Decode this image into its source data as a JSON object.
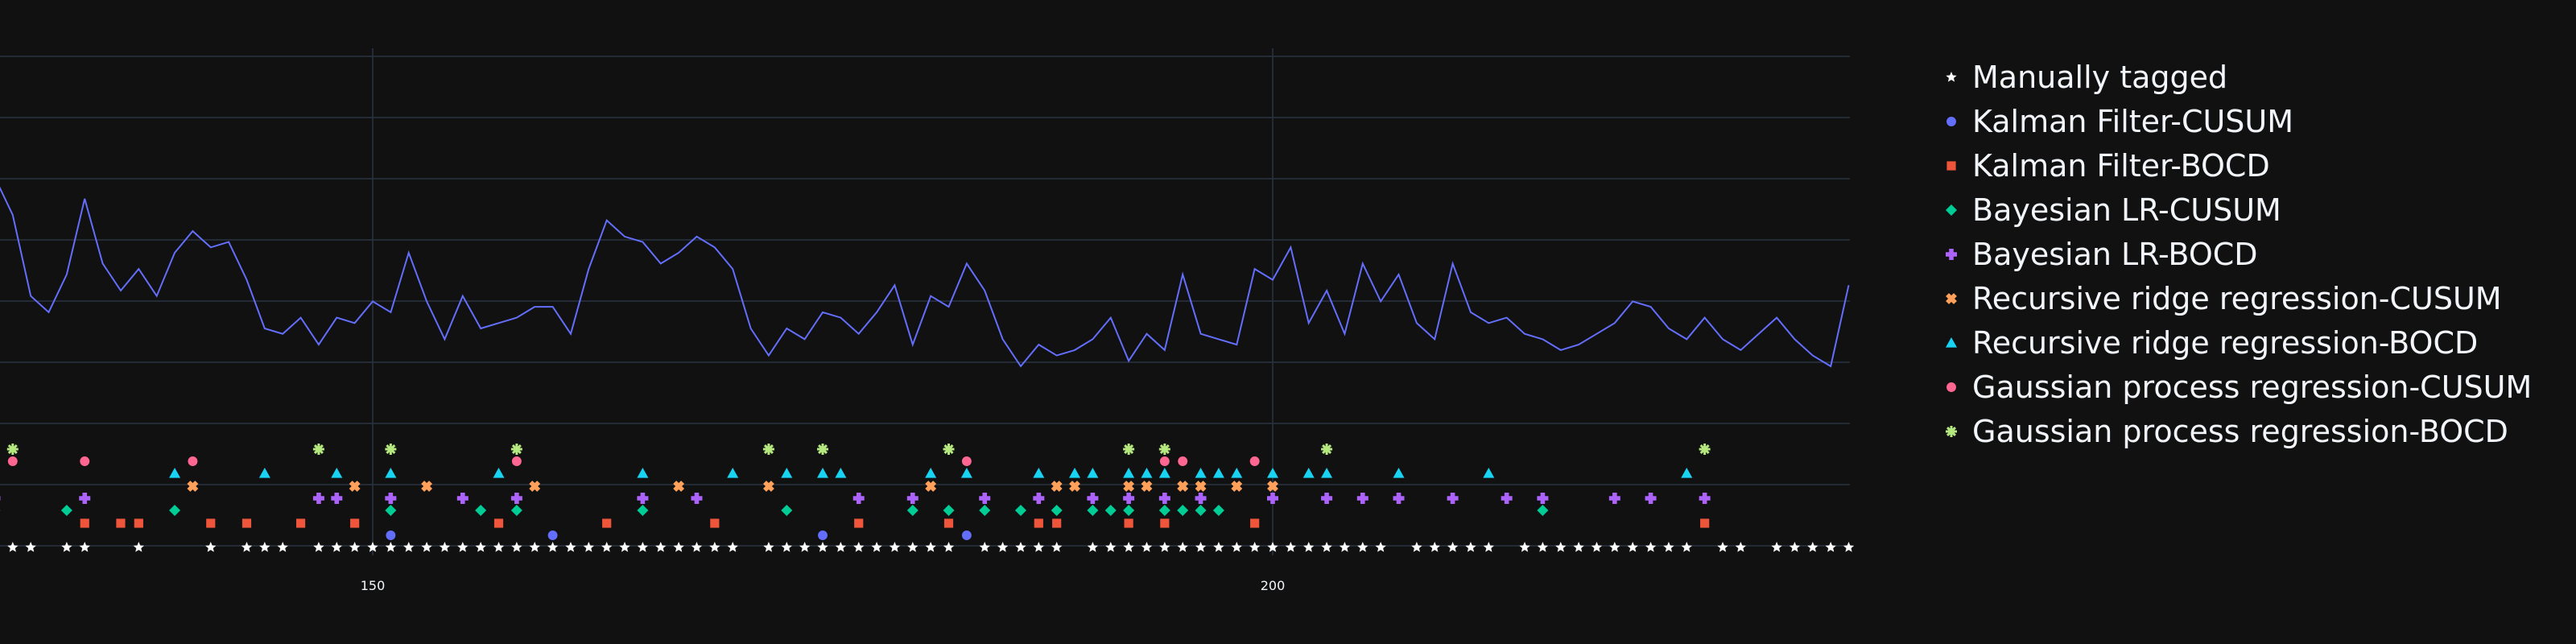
{
  "chart_data": {
    "type": "scatter",
    "title": "",
    "xlabel": "",
    "ylabel": "",
    "xlim": [
      129.4,
      231.5
    ],
    "x_ticks": [
      150,
      200
    ],
    "grid": true,
    "legend_position": "right",
    "background": "#111111",
    "gridcolor": "#283442",
    "line": {
      "color": "#636efa",
      "x": [
        129,
        130,
        131,
        132,
        133,
        134,
        135,
        136,
        137,
        138,
        139,
        140,
        141,
        142,
        143,
        144,
        145,
        146,
        147,
        148,
        149,
        150,
        151,
        152,
        153,
        154,
        155,
        156,
        157,
        158,
        159,
        160,
        161,
        162,
        163,
        164,
        165,
        166,
        167,
        168,
        169,
        170,
        171,
        172,
        173,
        174,
        175,
        176,
        177,
        178,
        179,
        180,
        181,
        182,
        183,
        184,
        185,
        186,
        187,
        188,
        189,
        190,
        191,
        192,
        193,
        194,
        195,
        196,
        197,
        198,
        199,
        200,
        201,
        202,
        203,
        204,
        205,
        206,
        207,
        208,
        209,
        210,
        211,
        212,
        213,
        214,
        215,
        216,
        217,
        218,
        219,
        220,
        221,
        222,
        223,
        224,
        225,
        226,
        227,
        228,
        229,
        230,
        231,
        232
      ],
      "y": [
        6.2,
        5.5,
        4.0,
        3.7,
        4.4,
        5.8,
        4.6,
        4.1,
        4.5,
        4.0,
        4.8,
        5.2,
        4.9,
        5.0,
        4.3,
        3.4,
        3.3,
        3.6,
        3.1,
        3.6,
        3.5,
        3.9,
        3.7,
        4.8,
        3.9,
        3.2,
        4.0,
        3.4,
        3.5,
        3.6,
        3.8,
        3.8,
        3.3,
        4.5,
        5.4,
        5.1,
        5.0,
        4.6,
        4.8,
        5.1,
        4.9,
        4.5,
        3.4,
        2.9,
        3.4,
        3.2,
        3.7,
        3.6,
        3.3,
        3.7,
        4.2,
        3.1,
        4.0,
        3.8,
        4.6,
        4.1,
        3.2,
        2.7,
        3.1,
        2.9,
        3.0,
        3.2,
        3.6,
        2.8,
        3.3,
        3.0,
        4.4,
        3.3,
        3.2,
        3.1,
        4.5,
        4.3,
        4.9,
        3.5,
        4.1,
        3.3,
        4.6,
        3.9,
        4.4,
        3.5,
        3.2,
        4.6,
        3.7,
        3.5,
        3.6,
        3.3,
        3.2,
        3.0,
        3.1,
        3.3,
        3.5,
        3.9,
        3.8,
        3.4,
        3.2,
        3.6,
        3.2,
        3.0,
        3.3,
        3.6,
        3.2,
        2.9,
        2.7,
        4.2
      ],
      "y_to_pixel": {
        "note": "drawn curve scaled to fill band"
      }
    },
    "series": [
      {
        "name": "Manually tagged",
        "symbol": "star",
        "color": "#ffffff",
        "x": [
          129,
          130,
          131,
          133,
          134,
          137,
          141,
          143,
          144,
          145,
          147,
          148,
          149,
          150,
          151,
          152,
          153,
          154,
          155,
          156,
          157,
          158,
          159,
          160,
          161,
          162,
          163,
          164,
          165,
          166,
          167,
          168,
          169,
          170,
          172,
          173,
          174,
          175,
          176,
          177,
          178,
          179,
          180,
          181,
          182,
          184,
          185,
          186,
          187,
          188,
          190,
          191,
          192,
          193,
          194,
          195,
          196,
          197,
          198,
          199,
          200,
          201,
          202,
          203,
          204,
          205,
          206,
          208,
          209,
          210,
          211,
          212,
          214,
          215,
          216,
          217,
          218,
          219,
          220,
          221,
          222,
          223,
          225,
          226,
          228,
          229,
          230,
          231,
          232
        ]
      },
      {
        "name": "Kalman Filter-CUSUM",
        "symbol": "circle",
        "color": "#636efa",
        "x": [
          151,
          160,
          175,
          183
        ]
      },
      {
        "name": "Kalman Filter-BOCD",
        "symbol": "square",
        "color": "#ef553b",
        "x": [
          134,
          136,
          137,
          141,
          143,
          146,
          149,
          157,
          163,
          169,
          177,
          182,
          187,
          188,
          192,
          194,
          199,
          224
        ]
      },
      {
        "name": "Bayesian LR-CUSUM",
        "symbol": "diamond",
        "color": "#00cc96",
        "x": [
          129,
          133,
          139,
          151,
          156,
          158,
          165,
          173,
          180,
          182,
          184,
          186,
          188,
          190,
          191,
          192,
          194,
          195,
          196,
          197,
          215
        ]
      },
      {
        "name": "Bayesian LR-BOCD",
        "symbol": "cross",
        "color": "#ab63fa",
        "x": [
          129,
          134,
          147,
          148,
          151,
          155,
          158,
          165,
          168,
          177,
          180,
          184,
          187,
          190,
          192,
          194,
          196,
          200,
          203,
          205,
          207,
          210,
          213,
          215,
          219,
          221,
          224
        ]
      },
      {
        "name": "Recursive ridge regression-CUSUM",
        "symbol": "x",
        "color": "#ffa15a",
        "x": [
          140,
          149,
          153,
          159,
          167,
          172,
          181,
          188,
          189,
          192,
          193,
          195,
          196,
          198,
          200
        ]
      },
      {
        "name": "Recursive ridge regression-BOCD",
        "symbol": "triangle-up",
        "color": "#19d3f3",
        "x": [
          139,
          144,
          148,
          151,
          157,
          165,
          170,
          173,
          175,
          176,
          181,
          183,
          187,
          189,
          190,
          192,
          193,
          194,
          196,
          197,
          198,
          200,
          202,
          203,
          207,
          212,
          223
        ]
      },
      {
        "name": "Gaussian process regression-CUSUM",
        "symbol": "circle",
        "color": "#ff6692",
        "x": [
          130,
          134,
          140,
          158,
          183,
          194,
          195,
          199
        ]
      },
      {
        "name": "Gaussian process regression-BOCD",
        "symbol": "asterisk",
        "color": "#b6e880",
        "x": [
          130,
          147,
          151,
          158,
          172,
          175,
          182,
          192,
          194,
          203,
          224
        ]
      }
    ],
    "legend_entries": [
      "Manually tagged",
      "Kalman Filter-CUSUM",
      "Kalman Filter-BOCD",
      "Bayesian LR-CUSUM",
      "Bayesian LR-BOCD",
      "Recursive ridge regression-CUSUM",
      "Recursive ridge regression-BOCD",
      "Gaussian process regression-CUSUM",
      "Gaussian process regression-BOCD"
    ]
  }
}
